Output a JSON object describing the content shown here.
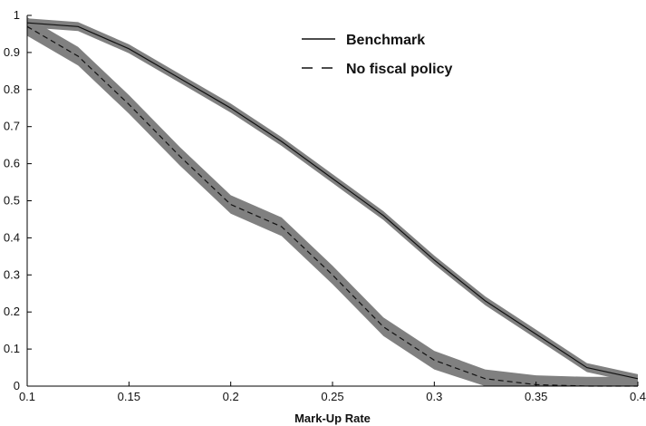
{
  "chart_data": {
    "type": "line",
    "title": "",
    "xlabel": "Mark-Up Rate",
    "ylabel": "",
    "xlim": [
      0.1,
      0.4
    ],
    "ylim": [
      0,
      1
    ],
    "grid": false,
    "legend_position": "top-center",
    "x_ticks": [
      "0.1",
      "0.15",
      "0.2",
      "0.25",
      "0.3",
      "0.35",
      "0.4"
    ],
    "y_ticks": [
      "0",
      "0.1",
      "0.2",
      "0.3",
      "0.4",
      "0.5",
      "0.6",
      "0.7",
      "0.8",
      "0.9",
      "1"
    ],
    "x": [
      0.1,
      0.125,
      0.15,
      0.175,
      0.2,
      0.225,
      0.25,
      0.275,
      0.3,
      0.325,
      0.35,
      0.375,
      0.4
    ],
    "series": [
      {
        "name": "Benchmark",
        "style": "solid",
        "values": [
          0.98,
          0.97,
          0.91,
          0.83,
          0.75,
          0.66,
          0.56,
          0.46,
          0.34,
          0.23,
          0.14,
          0.05,
          0.02
        ],
        "band": 0.012
      },
      {
        "name": "No fiscal policy",
        "style": "dashed",
        "values": [
          0.97,
          0.89,
          0.76,
          0.62,
          0.49,
          0.43,
          0.3,
          0.16,
          0.07,
          0.02,
          0.004,
          0.0,
          0.0
        ],
        "band": 0.025
      }
    ],
    "colors": {
      "line": "#111111",
      "band": "#808080"
    }
  }
}
